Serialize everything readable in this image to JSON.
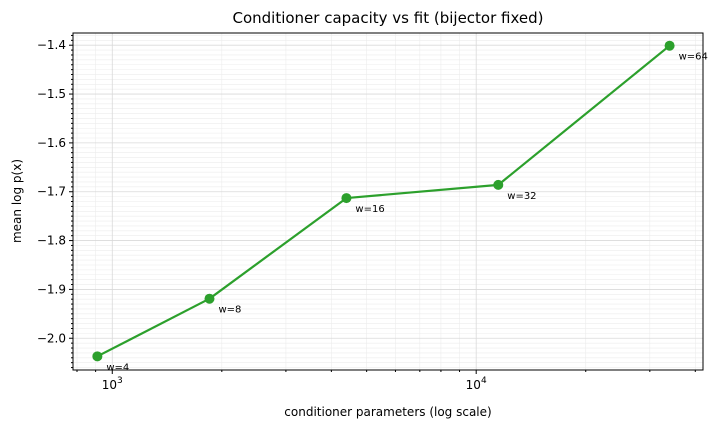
{
  "chart_data": {
    "type": "line",
    "title": "Conditioner capacity vs fit (bijector fixed)",
    "xlabel": "conditioner parameters (log scale)",
    "ylabel": "mean log p(x)",
    "x_scale": "log",
    "xlim": [
      780,
      42000
    ],
    "ylim": [
      -2.065,
      -1.375
    ],
    "grid": true,
    "color": "#2ca02c",
    "x_ticks": [
      {
        "value": 1000,
        "base": "10",
        "exp": "3"
      },
      {
        "value": 10000,
        "base": "10",
        "exp": "4"
      }
    ],
    "y_ticks": [
      {
        "value": -2.0,
        "label": "−2.0"
      },
      {
        "value": -1.9,
        "label": "−1.9"
      },
      {
        "value": -1.8,
        "label": "−1.8"
      },
      {
        "value": -1.7,
        "label": "−1.7"
      },
      {
        "value": -1.6,
        "label": "−1.6"
      },
      {
        "value": -1.5,
        "label": "−1.5"
      },
      {
        "value": -1.4,
        "label": "−1.4"
      }
    ],
    "points": [
      {
        "x": 910,
        "y": -2.037,
        "label": "w=4"
      },
      {
        "x": 1850,
        "y": -1.919,
        "label": "w=8"
      },
      {
        "x": 4400,
        "y": -1.713,
        "label": "w=16"
      },
      {
        "x": 11500,
        "y": -1.686,
        "label": "w=32"
      },
      {
        "x": 34000,
        "y": -1.401,
        "label": "w=64"
      }
    ]
  }
}
